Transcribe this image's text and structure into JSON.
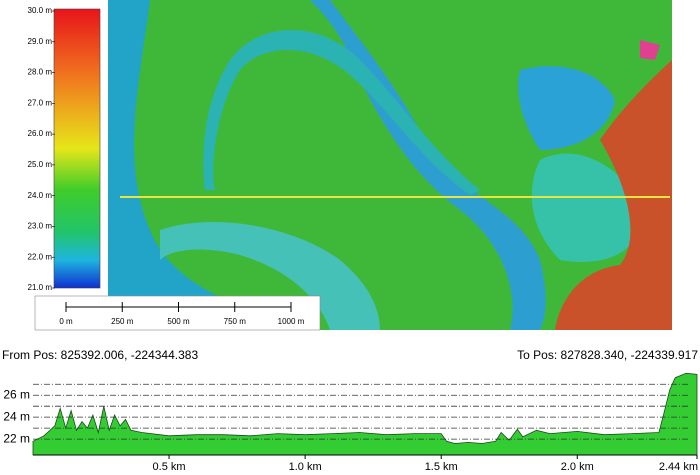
{
  "map": {
    "legend": {
      "labels": [
        "30.0 m",
        "29.0 m",
        "28.0 m",
        "27.0 m",
        "26.0 m",
        "25.0 m",
        "24.0 m",
        "23.0 m",
        "22.0 m",
        "21.0 m"
      ]
    },
    "scale_bar": {
      "labels": [
        "0 m",
        "250 m",
        "500 m",
        "750 m",
        "1000 m"
      ]
    }
  },
  "profile_header": {
    "from": "From Pos: 825392.006, -224344.383",
    "to": "To Pos: 827828.340, -224339.917"
  },
  "chart_data": {
    "type": "area",
    "x": [
      0,
      0.04,
      0.08,
      0.1,
      0.12,
      0.14,
      0.16,
      0.18,
      0.2,
      0.22,
      0.24,
      0.26,
      0.28,
      0.3,
      0.32,
      0.34,
      0.36,
      0.4,
      0.5,
      0.6,
      0.7,
      0.8,
      0.9,
      1.0,
      1.1,
      1.2,
      1.3,
      1.4,
      1.5,
      1.52,
      1.55,
      1.6,
      1.65,
      1.7,
      1.72,
      1.75,
      1.78,
      1.8,
      1.85,
      1.9,
      1.95,
      2.0,
      2.1,
      2.2,
      2.3,
      2.32,
      2.34,
      2.36,
      2.38,
      2.4,
      2.44
    ],
    "values": [
      21.8,
      22.3,
      23.2,
      24.8,
      23.0,
      24.6,
      22.8,
      23.6,
      23.0,
      24.2,
      22.6,
      25.0,
      22.8,
      24.2,
      23.2,
      23.8,
      22.8,
      22.6,
      22.3,
      22.4,
      22.4,
      22.3,
      22.5,
      22.4,
      22.5,
      22.6,
      22.4,
      22.5,
      22.5,
      21.8,
      21.6,
      21.7,
      21.6,
      21.8,
      22.6,
      21.9,
      22.9,
      22.2,
      22.8,
      22.5,
      22.6,
      22.7,
      22.4,
      22.5,
      22.6,
      24.5,
      26.5,
      27.6,
      27.8,
      28.0,
      27.9
    ],
    "color": "#33cc33",
    "xlim": [
      0,
      2.44
    ],
    "ylim": [
      20.55,
      28.3
    ],
    "xticks": [
      {
        "value": 0.5,
        "label": "0.5 km"
      },
      {
        "value": 1.0,
        "label": "1.0 km"
      },
      {
        "value": 1.5,
        "label": "1.5 km"
      },
      {
        "value": 2.0,
        "label": "2.0 km"
      },
      {
        "value": 2.44,
        "label": "2.44 km"
      }
    ],
    "yticks": [
      {
        "value": 22,
        "label": "22 m"
      },
      {
        "value": 24,
        "label": "24 m"
      },
      {
        "value": 26,
        "label": "26 m"
      }
    ],
    "minor_yticks": [
      23,
      25,
      27
    ],
    "grid": true
  }
}
